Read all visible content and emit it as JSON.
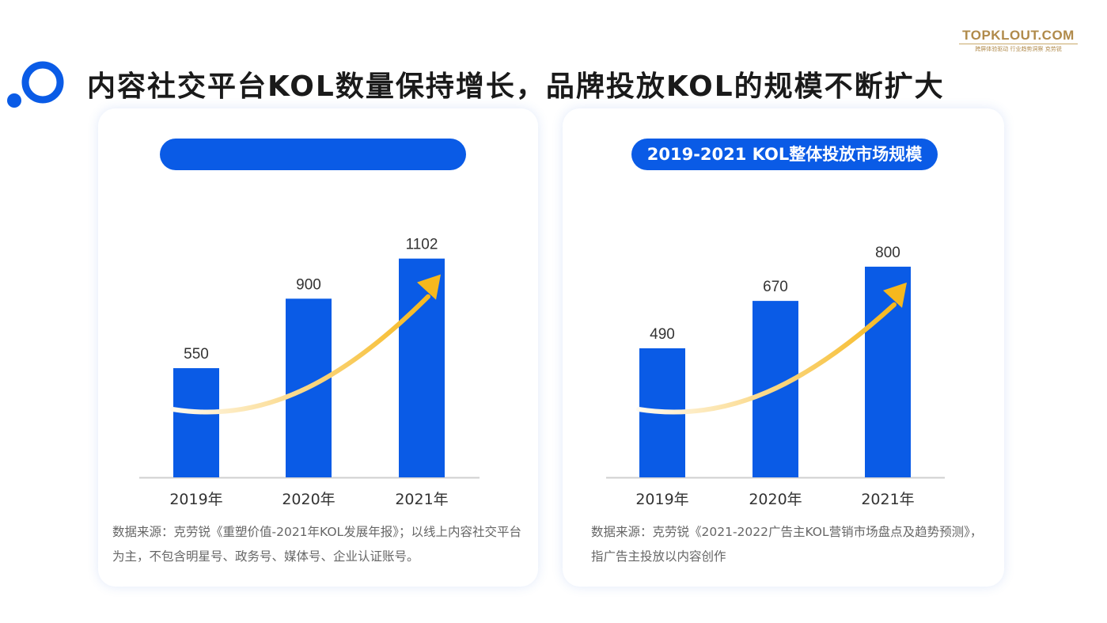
{
  "header": {
    "title": "内容社交平台KOL数量保持增长，品牌投放KOL的规模不断扩大",
    "brand_name": "TOPKLOUT.COM",
    "brand_slogan": "跨屏体验驱动 行业趋势洞察 克劳锐"
  },
  "colors": {
    "accent": "#0a5be6",
    "bar": "#0a5be6",
    "arrow": "#f6b81e",
    "brand": "#b08a4a"
  },
  "charts": [
    {
      "pill_label": "",
      "source_text": "数据来源：克劳锐《重塑价值-2021年KOL发展年报》；以线上内容社交平台为主，不包含明星号、政务号、媒体号、企业认证账号。",
      "chart_data": {
        "type": "bar",
        "title": "",
        "categories": [
          "2019年",
          "2020年",
          "2021年"
        ],
        "values": [
          550,
          900,
          1102
        ],
        "data_labels": [
          "550",
          "900",
          "1102"
        ],
        "ylim": [
          0,
          1300
        ],
        "grid": false,
        "legend": "none"
      }
    },
    {
      "pill_label": "2019-2021 KOL整体投放市场规模",
      "source_text": "数据来源：克劳锐《2021-2022广告主KOL营销市场盘点及趋势预测》，指广告主投放以内容创作",
      "chart_data": {
        "type": "bar",
        "title": "2019-2021 KOL整体投放市场规模",
        "categories": [
          "2019年",
          "2020年",
          "2021年"
        ],
        "values": [
          490,
          670,
          800
        ],
        "data_labels": [
          "490",
          "670",
          "800"
        ],
        "ylim": [
          0,
          980
        ],
        "grid": false,
        "legend": "none"
      }
    }
  ]
}
